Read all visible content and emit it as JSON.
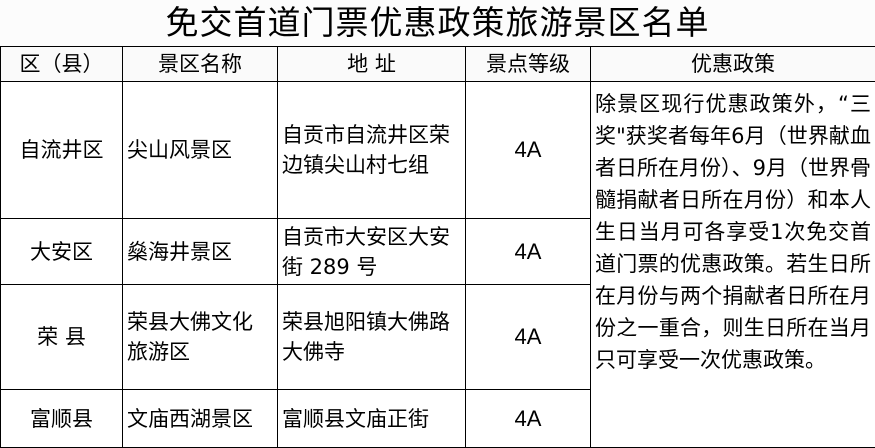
{
  "title": "免交首道门票优惠政策旅游景区名单",
  "headers": [
    "区（县）",
    "景区名称",
    "地 址",
    "景点等级",
    "优惠政策"
  ],
  "rows": [
    {
      "district": "自流井区",
      "name": "尖山风景区",
      "address": "自贡市自流井区荣边镇尖山村七组",
      "grade": "4A"
    },
    {
      "district": "大安区",
      "name": "燊海井景区",
      "address": "自贡市大安区大安街 289 号",
      "grade": "4A"
    },
    {
      "district": "荣 县",
      "name": "荣县大佛文化旅游区",
      "address": "荣县旭阳镇大佛路大佛寺",
      "grade": "4A"
    },
    {
      "district": "富顺县",
      "name": "文庙西湖景区",
      "address": "富顺县文庙正街",
      "grade": "4A"
    }
  ],
  "policy": "除景区现行优惠政策外，“三奖\"获奖者每年6月（世界献血者日所在月份）、9月（世界骨髓捐献者日所在月份）和本人生日当月可各享受1次免交首道门票的优惠政策。若生日所在月份与两个捐献者日所在月份之一重合，则生日所在当月只可享受一次优惠政策。"
}
